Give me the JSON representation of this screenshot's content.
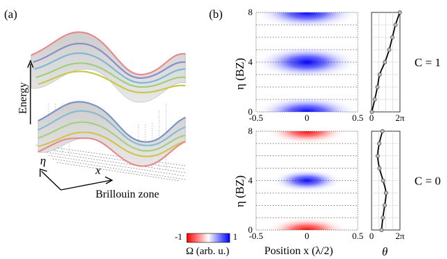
{
  "panel_a": {
    "label": "(a)",
    "axis_energy": "Energy",
    "axis_eta": "η",
    "axis_x": "x",
    "axis_bz": "Brillouin zone"
  },
  "panel_b": {
    "label": "(b)",
    "ylabel": "η (BZ)",
    "xlabel": "Position x (λ/2)",
    "theta_label": "θ",
    "colorbar": {
      "label": "Ω (arb. u.)",
      "min_label": "-1",
      "max_label": "1",
      "colors": {
        "negative": "#ff0000",
        "zero": "#ffffff",
        "positive": "#0000ff"
      }
    }
  },
  "chart_data": [
    {
      "type": "heatmap",
      "name": "C = 1",
      "chern_label": "C = 1",
      "x_range": [
        -0.5,
        0.5
      ],
      "y_range": [
        0,
        8
      ],
      "x_tick_labels": [
        "-0.5",
        "0",
        "0.5"
      ],
      "y_tick_labels": [
        "0",
        "4",
        "8"
      ],
      "peaks": [
        {
          "x": 0,
          "eta": 0,
          "sign": 1,
          "amplitude": 1.0
        },
        {
          "x": 0,
          "eta": 4,
          "sign": 1,
          "amplitude": 1.0
        },
        {
          "x": 0,
          "eta": 8,
          "sign": 1,
          "amplitude": 1.0
        }
      ],
      "theta_curve": {
        "x_tick_labels": [
          "0",
          "2π"
        ],
        "x_range": [
          0,
          6.2832
        ],
        "eta": [
          0,
          1,
          2,
          3,
          4,
          5,
          6,
          7,
          8
        ],
        "theta": [
          0.05,
          0.7,
          1.3,
          1.8,
          2.95,
          3.9,
          4.6,
          5.3,
          6.25
        ]
      }
    },
    {
      "type": "heatmap",
      "name": "C = 0",
      "chern_label": "C = 0",
      "x_range": [
        -0.5,
        0.5
      ],
      "y_range": [
        0,
        8
      ],
      "x_tick_labels": [
        "-0.5",
        "0",
        "0.5"
      ],
      "y_tick_labels": [
        "0",
        "4",
        "8"
      ],
      "peaks": [
        {
          "x": 0,
          "eta": 0,
          "sign": -1,
          "amplitude": 0.8
        },
        {
          "x": 0,
          "eta": 4,
          "sign": 1,
          "amplitude": 0.7
        },
        {
          "x": 0,
          "eta": 8,
          "sign": -1,
          "amplitude": 0.8
        }
      ],
      "theta_curve": {
        "x_tick_labels": [
          "0",
          "2π"
        ],
        "x_range": [
          0,
          6.2832
        ],
        "eta": [
          0,
          1,
          2,
          3,
          4,
          5,
          6,
          7,
          8
        ],
        "theta": [
          2.2,
          2.5,
          2.9,
          3.2,
          2.55,
          1.75,
          1.35,
          1.7,
          2.4
        ]
      }
    }
  ]
}
